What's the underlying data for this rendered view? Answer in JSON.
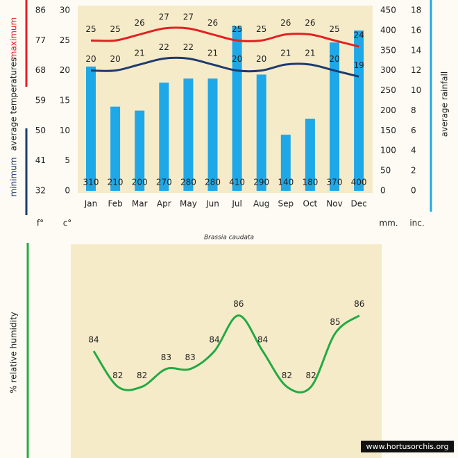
{
  "chart_data": [
    {
      "type": "bar_line",
      "categories": [
        "Jan",
        "Feb",
        "Mar",
        "Apr",
        "May",
        "Jun",
        "Jul",
        "Aug",
        "Sep",
        "Oct",
        "Nov",
        "Dec"
      ],
      "series": [
        {
          "name": "maximum",
          "color": "#e02222",
          "axis": "y",
          "values": [
            25,
            25,
            26,
            27,
            27,
            26,
            25,
            25,
            26,
            26,
            25,
            24
          ]
        },
        {
          "name": "minimum",
          "color": "#1f3a6e",
          "axis": "y",
          "values": [
            20,
            20,
            21,
            22,
            22,
            21,
            20,
            20,
            21,
            21,
            20,
            19
          ]
        },
        {
          "color": "#1ea8e8",
          "axis": "y2",
          "values": [
            310,
            210,
            200,
            270,
            280,
            280,
            410,
            290,
            140,
            180,
            370,
            400
          ]
        }
      ],
      "y_label": "average temperatures",
      "y2_label": "average rainfall",
      "ylim": [
        0,
        30
      ],
      "yticks": [
        0,
        5,
        10,
        15,
        20,
        25,
        30
      ],
      "yunit": "c°",
      "y3lim": [
        32,
        86
      ],
      "y3ticks": [
        32,
        41,
        50,
        59,
        68,
        77,
        86
      ],
      "y3unit": "f°",
      "y2lim": [
        0,
        450
      ],
      "y2ticks": [
        0,
        50,
        100,
        150,
        200,
        250,
        300,
        350,
        400,
        450
      ],
      "y2unit": "mm.",
      "y4lim": [
        0,
        18
      ],
      "y4ticks": [
        0,
        2,
        4,
        6,
        8,
        10,
        12,
        14,
        16,
        18
      ],
      "y4unit": "inc.",
      "caption": "Brassia caudata"
    },
    {
      "type": "line",
      "categories": [
        null,
        null,
        null,
        null,
        null,
        null,
        null,
        null,
        null,
        null,
        null,
        null
      ],
      "series": [
        {
          "color": "#22aa44",
          "values": [
            84,
            82,
            82,
            83,
            83,
            84,
            86,
            84,
            82,
            82,
            85,
            86
          ]
        }
      ],
      "y_label": "% relative humidity",
      "ylim": [
        78,
        90
      ],
      "footer": "www.hortusorchis.org"
    }
  ]
}
